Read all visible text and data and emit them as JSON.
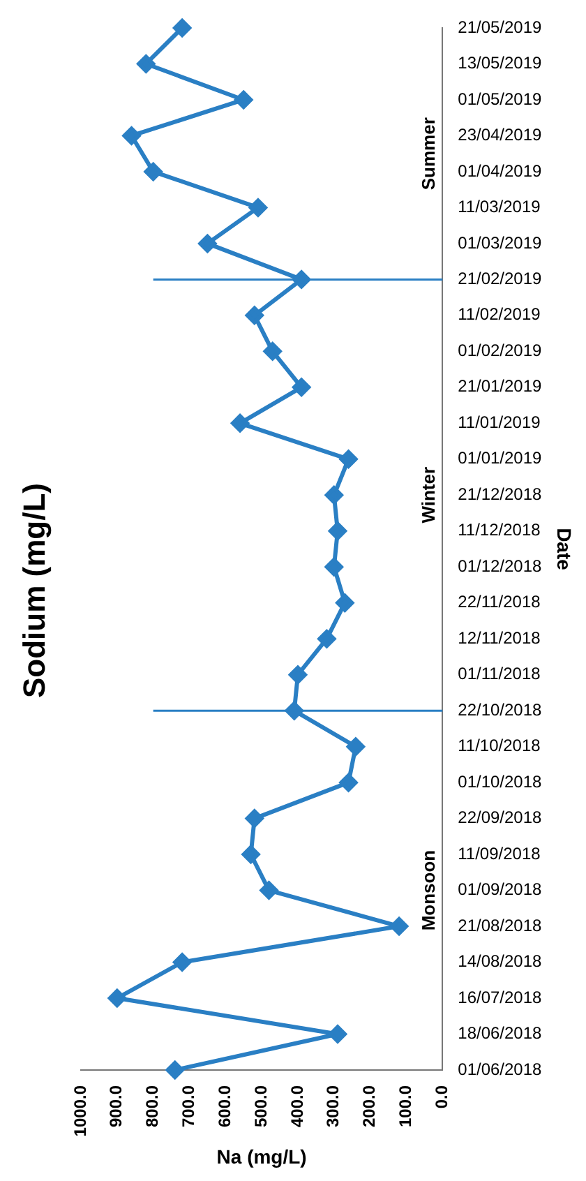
{
  "chart_data": {
    "type": "line",
    "orientation": "horizontal",
    "title": "Sodium (mg/L)",
    "ylabel": "Date",
    "xlabel": "Na (mg/L)",
    "categories": [
      "21/05/2019",
      "13/05/2019",
      "01/05/2019",
      "23/04/2019",
      "01/04/2019",
      "11/03/2019",
      "01/03/2019",
      "21/02/2019",
      "11/02/2019",
      "01/02/2019",
      "21/01/2019",
      "11/01/2019",
      "01/01/2019",
      "21/12/2018",
      "11/12/2018",
      "01/12/2018",
      "22/11/2018",
      "12/11/2018",
      "01/11/2018",
      "22/10/2018",
      "11/10/2018",
      "01/10/2018",
      "22/09/2018",
      "11/09/2018",
      "01/09/2018",
      "21/08/2018",
      "14/08/2018",
      "16/07/2018",
      "18/06/2018",
      "01/06/2018"
    ],
    "series": [
      {
        "color": "#2a7fc4",
        "values": [
          720,
          820,
          550,
          860,
          800,
          510,
          650,
          390,
          520,
          470,
          390,
          560,
          260,
          300,
          290,
          300,
          270,
          320,
          400,
          410,
          240,
          260,
          520,
          530,
          480,
          120,
          720,
          900,
          290,
          740
        ]
      }
    ],
    "xlim": [
      1000,
      0
    ],
    "xticks": [
      {
        "value": 0,
        "label": "0.0"
      },
      {
        "value": 100,
        "label": "100.0"
      },
      {
        "value": 200,
        "label": "200.0"
      },
      {
        "value": 300,
        "label": "300.0"
      },
      {
        "value": 400,
        "label": "400.0"
      },
      {
        "value": 500,
        "label": "500.0"
      },
      {
        "value": 600,
        "label": "600.0"
      },
      {
        "value": 700,
        "label": "700.0"
      },
      {
        "value": 800,
        "label": "800.0"
      },
      {
        "value": 900,
        "label": "900.0"
      },
      {
        "value": 1000,
        "label": "1000.0"
      }
    ],
    "ref_lines": [
      {
        "axis": "y",
        "value": "22/10/2018",
        "color": "#2a7fc4"
      },
      {
        "axis": "y",
        "value": "21/02/2019",
        "color": "#2a7fc4"
      }
    ],
    "annotations": [
      "Monsoon",
      "Winter",
      "Summer"
    ],
    "marker": "diamond",
    "line_style": "solid",
    "grid": false,
    "legend": false
  }
}
